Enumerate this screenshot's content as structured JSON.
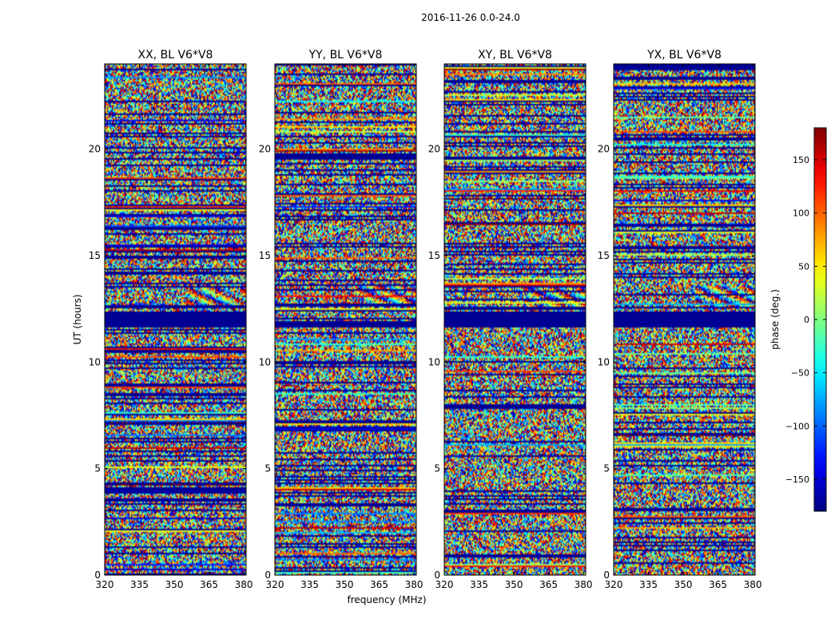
{
  "figure": {
    "suptitle": "2016-11-26 0.0-24.0"
  },
  "chart_data": {
    "type": "heatmap",
    "suptitle": "2016-11-26 0.0-24.0",
    "xlabel": "frequency (MHz)",
    "ylabel": "UT (hours)",
    "xlim": [
      320,
      381
    ],
    "ylim": [
      0,
      24
    ],
    "xticks": [
      "320",
      "335",
      "350",
      "365",
      "380"
    ],
    "xtick_values": [
      320,
      335,
      350,
      365,
      380
    ],
    "yticks": [
      "0",
      "5",
      "10",
      "15",
      "20"
    ],
    "ytick_values": [
      0,
      5,
      10,
      15,
      20
    ],
    "colorbar": {
      "label": "phase (deg.)",
      "range": [
        -180,
        180
      ],
      "ticks": [
        "150",
        "100",
        "50",
        "0",
        "−50",
        "−100",
        "−150"
      ],
      "tick_values": [
        150,
        100,
        50,
        0,
        -50,
        -100,
        -150
      ],
      "colormap": "jet"
    },
    "panels": [
      {
        "title": "XX, BL V6*V8",
        "seed": 11
      },
      {
        "title": "YY, BL V6*V8",
        "seed": 23
      },
      {
        "title": "XY, BL V6*V8",
        "seed": 37
      },
      {
        "title": "YX, BL V6*V8",
        "seed": 53
      }
    ],
    "flagged_hours": [
      {
        "start": 11.65,
        "end": 12.35,
        "panels": [
          0,
          2,
          3
        ]
      },
      {
        "start": 11.65,
        "end": 11.95,
        "panels": [
          1
        ]
      }
    ],
    "structured_bands": [
      {
        "start": 12.6,
        "end": 13.6,
        "freq_from": 355
      }
    ]
  }
}
